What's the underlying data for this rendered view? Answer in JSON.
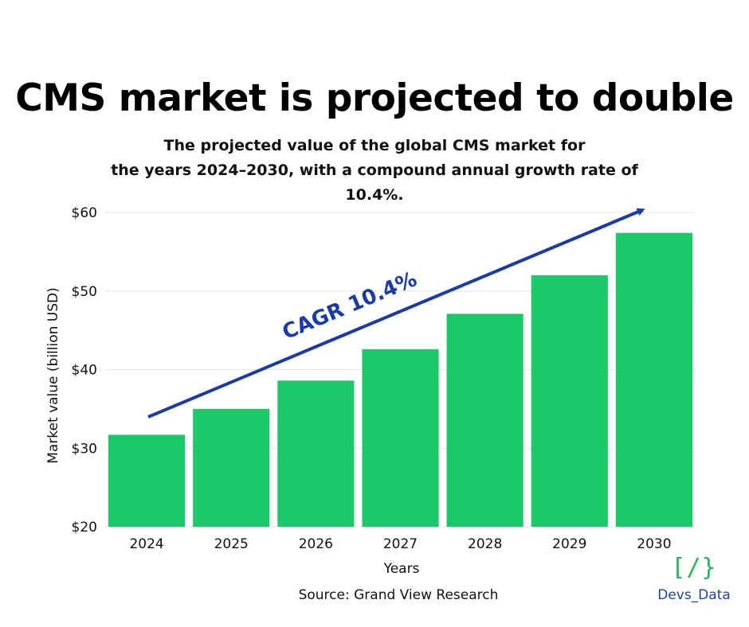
{
  "title": "CMS market is projected to double",
  "subtitle_line1": "The projected value of the global CMS market for",
  "subtitle_line2": "the years 2024–2030, with a compound annual growth rate of 10.4%.",
  "source": "Source: Grand View Research",
  "logo": {
    "mark": "[/}",
    "text": "Devs_Data"
  },
  "colors": {
    "bar": "#1dc869",
    "arrow": "#1a3aa8",
    "grid": "#e6e6e6",
    "axis_text": "#111111"
  },
  "chart_data": {
    "type": "bar",
    "categories": [
      "2024",
      "2025",
      "2026",
      "2027",
      "2028",
      "2029",
      "2030"
    ],
    "values": [
      31.7,
      35.0,
      38.6,
      42.6,
      47.1,
      52.0,
      57.4
    ],
    "xlabel": "Years",
    "ylabel": "Market value (billion USD)",
    "ylim": [
      20,
      60
    ],
    "yticks": [
      20,
      30,
      40,
      50,
      60
    ],
    "ytick_labels": [
      "$20",
      "$30",
      "$40",
      "$50",
      "$60"
    ],
    "grid": true,
    "annotation": "CAGR 10.4%"
  }
}
